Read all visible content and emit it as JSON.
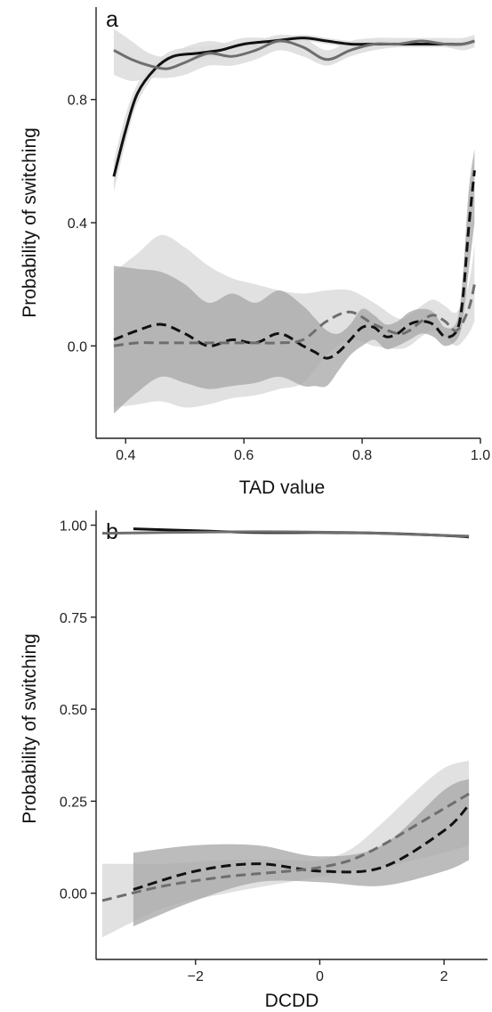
{
  "colors": {
    "series_black": "#111111",
    "series_gray": "#6e6e6e",
    "band_dark": "#a6a6a6",
    "band_light": "#dcdcdc",
    "axis": "#222222",
    "background": "#ffffff"
  },
  "chart_data": [
    {
      "type": "line",
      "panel_label": "a",
      "xlabel": "TAD value",
      "ylabel": "Probability of switching",
      "xlim": [
        0.35,
        1.0
      ],
      "ylim": [
        -0.3,
        1.1
      ],
      "xticks": [
        0.4,
        0.6,
        0.8,
        1.0
      ],
      "xtick_labels": [
        "0.4",
        "0.6",
        "0.8",
        "1.0"
      ],
      "yticks": [
        0.0,
        0.4,
        0.8
      ],
      "ytick_labels": [
        "0.0",
        "0.4",
        "0.8"
      ],
      "grid": false,
      "legend": "none",
      "series": [
        {
          "color": "black",
          "style": "solid",
          "x": [
            0.38,
            0.4,
            0.42,
            0.45,
            0.48,
            0.52,
            0.56,
            0.6,
            0.65,
            0.7,
            0.74,
            0.78,
            0.82,
            0.86,
            0.9,
            0.94,
            0.97,
            0.99
          ],
          "y": [
            0.55,
            0.7,
            0.82,
            0.9,
            0.94,
            0.95,
            0.96,
            0.98,
            0.99,
            1.0,
            0.99,
            0.98,
            0.98,
            0.98,
            0.98,
            0.98,
            0.98,
            0.99
          ],
          "band": {
            "shade": "light",
            "lower": [
              0.5,
              0.66,
              0.79,
              0.88,
              0.92,
              0.93,
              0.94,
              0.96,
              0.98,
              0.99,
              0.98,
              0.97,
              0.97,
              0.97,
              0.97,
              0.97,
              0.97,
              0.98
            ],
            "upper": [
              0.6,
              0.75,
              0.85,
              0.92,
              0.96,
              0.97,
              0.98,
              1.0,
              1.0,
              1.01,
              1.0,
              0.99,
              0.99,
              0.99,
              0.99,
              0.99,
              0.99,
              1.0
            ]
          }
        },
        {
          "color": "gray",
          "style": "solid",
          "x": [
            0.38,
            0.41,
            0.44,
            0.47,
            0.5,
            0.54,
            0.58,
            0.62,
            0.66,
            0.7,
            0.74,
            0.78,
            0.82,
            0.86,
            0.9,
            0.94,
            0.97,
            0.99
          ],
          "y": [
            0.96,
            0.93,
            0.91,
            0.9,
            0.92,
            0.95,
            0.94,
            0.96,
            0.99,
            0.97,
            0.93,
            0.96,
            0.98,
            0.98,
            0.99,
            0.98,
            0.98,
            0.99
          ],
          "band": {
            "shade": "light",
            "lower": [
              0.88,
              0.86,
              0.87,
              0.87,
              0.88,
              0.91,
              0.91,
              0.93,
              0.96,
              0.94,
              0.91,
              0.94,
              0.96,
              0.97,
              0.97,
              0.97,
              0.96,
              0.97
            ],
            "upper": [
              1.03,
              0.99,
              0.95,
              0.94,
              0.97,
              0.99,
              0.98,
              0.99,
              1.01,
              1.0,
              0.96,
              0.99,
              1.0,
              1.0,
              1.0,
              1.0,
              1.0,
              1.01
            ]
          }
        },
        {
          "color": "black",
          "style": "dashed",
          "x": [
            0.38,
            0.42,
            0.46,
            0.5,
            0.54,
            0.58,
            0.62,
            0.66,
            0.7,
            0.72,
            0.74,
            0.76,
            0.78,
            0.8,
            0.82,
            0.84,
            0.86,
            0.88,
            0.9,
            0.92,
            0.94,
            0.96,
            0.97,
            0.98,
            0.99
          ],
          "y": [
            0.02,
            0.05,
            0.07,
            0.04,
            0.0,
            0.02,
            0.01,
            0.04,
            0.0,
            -0.02,
            -0.04,
            -0.02,
            0.02,
            0.06,
            0.06,
            0.03,
            0.04,
            0.07,
            0.08,
            0.07,
            0.03,
            0.05,
            0.15,
            0.38,
            0.57
          ],
          "band": {
            "shade": "dark",
            "lower": [
              -0.22,
              -0.15,
              -0.1,
              -0.12,
              -0.14,
              -0.13,
              -0.12,
              -0.1,
              -0.13,
              -0.13,
              -0.13,
              -0.08,
              -0.03,
              0.0,
              0.02,
              -0.01,
              0.0,
              0.02,
              0.04,
              0.03,
              0.0,
              0.02,
              0.08,
              0.24,
              0.4
            ],
            "upper": [
              0.26,
              0.25,
              0.24,
              0.2,
              0.14,
              0.17,
              0.14,
              0.18,
              0.13,
              0.09,
              0.05,
              0.04,
              0.07,
              0.12,
              0.1,
              0.07,
              0.08,
              0.11,
              0.12,
              0.11,
              0.06,
              0.08,
              0.22,
              0.5,
              0.64
            ]
          }
        },
        {
          "color": "gray",
          "style": "dashed",
          "x": [
            0.38,
            0.42,
            0.46,
            0.5,
            0.54,
            0.58,
            0.62,
            0.66,
            0.7,
            0.74,
            0.78,
            0.82,
            0.86,
            0.88,
            0.9,
            0.92,
            0.94,
            0.96,
            0.98,
            0.99
          ],
          "y": [
            0.0,
            0.01,
            0.01,
            0.01,
            0.01,
            0.01,
            0.01,
            0.01,
            0.02,
            0.08,
            0.11,
            0.07,
            0.04,
            0.05,
            0.08,
            0.1,
            0.08,
            0.05,
            0.12,
            0.2
          ],
          "band": {
            "shade": "light",
            "lower": [
              -0.2,
              -0.19,
              -0.18,
              -0.2,
              -0.19,
              -0.17,
              -0.16,
              -0.14,
              -0.12,
              -0.03,
              0.02,
              0.0,
              -0.01,
              0.0,
              0.03,
              0.05,
              0.03,
              0.0,
              0.04,
              0.08
            ],
            "upper": [
              0.24,
              0.3,
              0.36,
              0.32,
              0.26,
              0.22,
              0.2,
              0.18,
              0.17,
              0.18,
              0.18,
              0.14,
              0.09,
              0.1,
              0.13,
              0.15,
              0.13,
              0.11,
              0.2,
              0.33
            ]
          }
        }
      ]
    },
    {
      "type": "line",
      "panel_label": "b",
      "xlabel": "DCDD",
      "ylabel": "Probability of switching",
      "xlim": [
        -3.6,
        2.7
      ],
      "ylim": [
        -0.18,
        1.04
      ],
      "xticks": [
        -2,
        0,
        2
      ],
      "xtick_labels": [
        "−2",
        "0",
        "2"
      ],
      "yticks": [
        0.0,
        0.25,
        0.5,
        0.75,
        1.0
      ],
      "ytick_labels": [
        "0.00",
        "0.25",
        "0.50",
        "0.75",
        "1.00"
      ],
      "grid": false,
      "legend": "none",
      "series": [
        {
          "color": "black",
          "style": "solid",
          "x": [
            -3.0,
            -2.0,
            -1.0,
            0.0,
            1.0,
            2.0,
            2.4
          ],
          "y": [
            0.99,
            0.985,
            0.98,
            0.98,
            0.978,
            0.972,
            0.968
          ]
        },
        {
          "color": "gray",
          "style": "solid",
          "x": [
            -3.5,
            -2.5,
            -1.5,
            -0.5,
            0.5,
            1.5,
            2.4
          ],
          "y": [
            0.978,
            0.98,
            0.982,
            0.982,
            0.98,
            0.975,
            0.97
          ]
        },
        {
          "color": "black",
          "style": "dashed",
          "x": [
            -3.0,
            -2.0,
            -1.0,
            0.0,
            1.0,
            2.0,
            2.4
          ],
          "y": [
            0.01,
            0.06,
            0.08,
            0.06,
            0.07,
            0.17,
            0.24
          ],
          "band": {
            "shade": "dark",
            "lower": [
              -0.09,
              -0.02,
              0.03,
              0.03,
              0.02,
              0.06,
              0.09
            ],
            "upper": [
              0.11,
              0.13,
              0.13,
              0.1,
              0.13,
              0.28,
              0.31
            ]
          }
        },
        {
          "color": "gray",
          "style": "dashed",
          "x": [
            -3.5,
            -2.5,
            -1.5,
            -0.5,
            0.0,
            0.5,
            1.0,
            1.5,
            2.0,
            2.4
          ],
          "y": [
            -0.02,
            0.02,
            0.045,
            0.06,
            0.07,
            0.09,
            0.13,
            0.18,
            0.23,
            0.27
          ],
          "band": {
            "shade": "light",
            "lower": [
              -0.12,
              -0.04,
              0.0,
              0.03,
              0.045,
              0.06,
              0.07,
              0.09,
              0.11,
              0.13
            ],
            "upper": [
              0.08,
              0.08,
              0.09,
              0.09,
              0.09,
              0.12,
              0.19,
              0.27,
              0.34,
              0.36
            ]
          }
        }
      ]
    }
  ]
}
